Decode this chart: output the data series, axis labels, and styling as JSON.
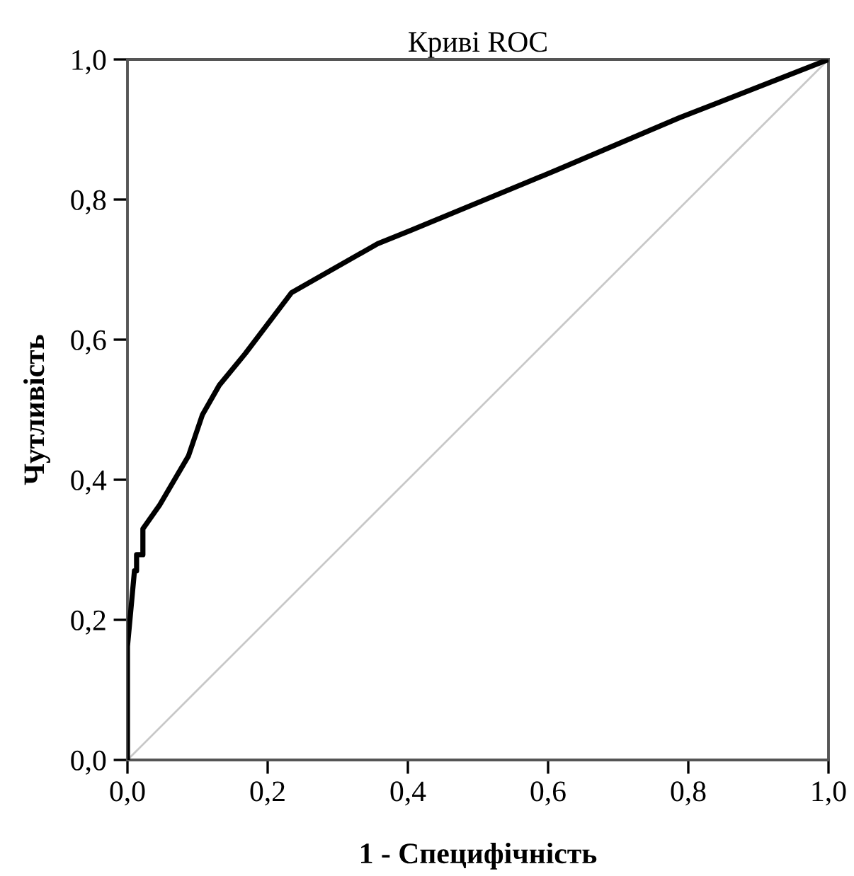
{
  "chart_data": {
    "type": "line",
    "title": "Криві ROC",
    "xlabel": "1 - Специфічність",
    "ylabel": "Чутливість",
    "xlim": [
      0,
      1
    ],
    "ylim": [
      0,
      1
    ],
    "xticks": [
      {
        "value": 0,
        "label": "0,0"
      },
      {
        "value": 0.2,
        "label": "0,2"
      },
      {
        "value": 0.4,
        "label": "0,4"
      },
      {
        "value": 0.6,
        "label": "0,6"
      },
      {
        "value": 0.8,
        "label": "0,8"
      },
      {
        "value": 1,
        "label": "1,0"
      }
    ],
    "yticks": [
      {
        "value": 0,
        "label": "0,0"
      },
      {
        "value": 0.2,
        "label": "0,2"
      },
      {
        "value": 0.4,
        "label": "0,4"
      },
      {
        "value": 0.6,
        "label": "0,6"
      },
      {
        "value": 0.8,
        "label": "0,8"
      },
      {
        "value": 1,
        "label": "1,0"
      }
    ],
    "grid": false,
    "legend": false,
    "series": [
      {
        "color": "#000000",
        "x": [
          0,
          0,
          0.01,
          0.013,
          0.013,
          0.022,
          0.022,
          0.046,
          0.087,
          0.107,
          0.131,
          0.168,
          0.234,
          0.357,
          0.404,
          0.612,
          0.788,
          1
        ],
        "values": [
          0,
          0.162,
          0.27,
          0.27,
          0.293,
          0.293,
          0.33,
          0.364,
          0.434,
          0.493,
          0.535,
          0.58,
          0.667,
          0.737,
          0.756,
          0.842,
          0.917,
          1
        ]
      },
      {
        "color": "#c8c8c8",
        "x": [
          0,
          1
        ],
        "values": [
          0,
          1
        ]
      }
    ]
  }
}
